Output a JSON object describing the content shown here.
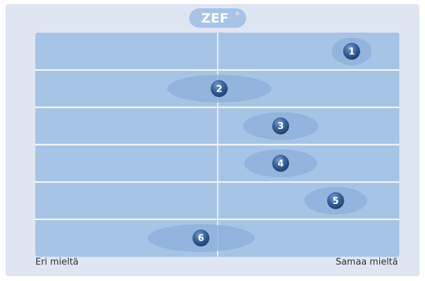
{
  "chart_data": {
    "type": "scatter",
    "title": "ZEF",
    "title_mark": "®",
    "categories": [
      "1",
      "2",
      "3",
      "4",
      "5",
      "6"
    ],
    "values": [
      86.9,
      50.5,
      67.4,
      67.4,
      82.5,
      45.5
    ],
    "spread": [
      5.5,
      14.3,
      10.3,
      10,
      8.6,
      14.7
    ],
    "xlim": [
      0,
      100
    ],
    "left_label": "Eri mieltä",
    "right_label": "Samaa mieltä",
    "color": "#2f5b95"
  }
}
